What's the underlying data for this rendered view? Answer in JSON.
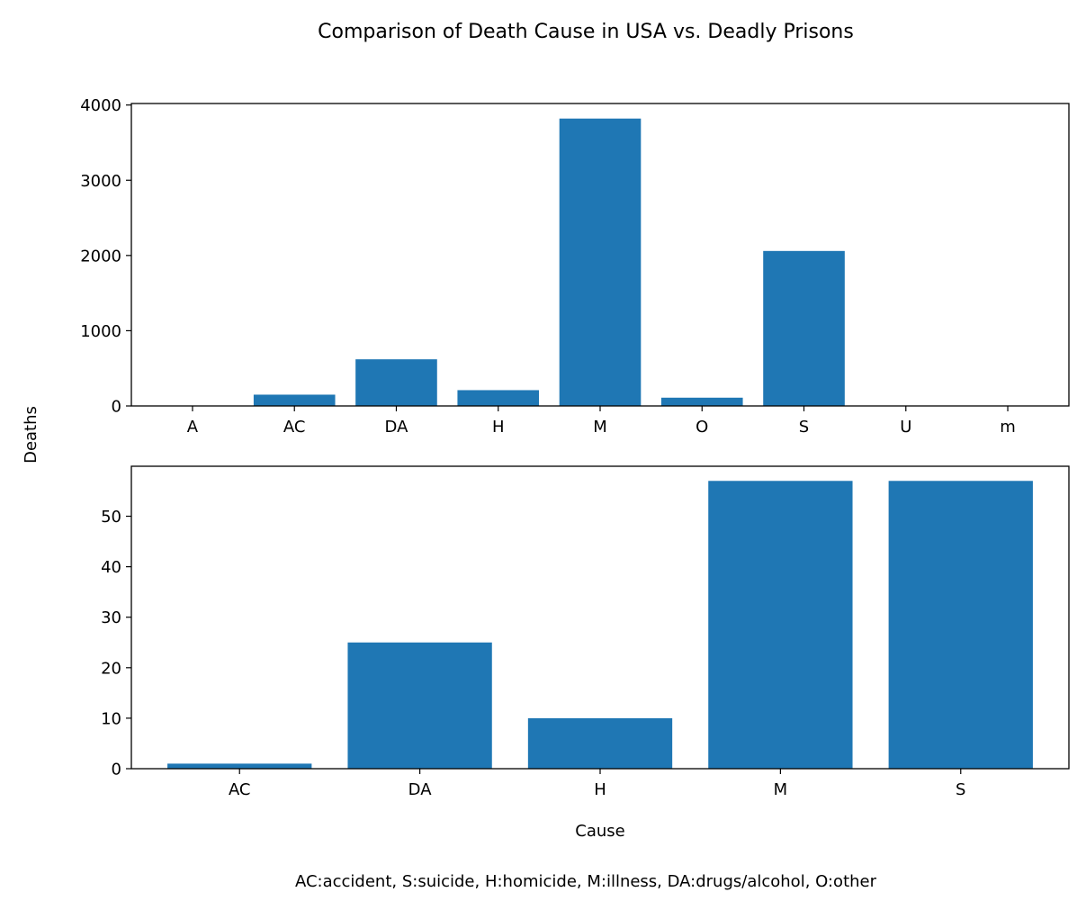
{
  "figure": {
    "title": "Comparison of Death Cause in USA vs. Deadly Prisons",
    "ylabel": "Deaths",
    "caption": "AC:accident, S:suicide, H:homicide, M:illness, DA:drugs/alcohol, O:other",
    "bar_color": "#1f77b4"
  },
  "chart_data": [
    {
      "type": "bar",
      "title": "",
      "xlabel": "",
      "ylabel": "Deaths",
      "categories": [
        "A",
        "AC",
        "DA",
        "H",
        "M",
        "O",
        "S",
        "U",
        "m"
      ],
      "values": [
        2,
        150,
        620,
        210,
        3820,
        110,
        2060,
        2,
        2
      ],
      "yticks": [
        0,
        1000,
        2000,
        3000,
        4000
      ],
      "ylim": [
        0,
        4020
      ]
    },
    {
      "type": "bar",
      "title": "",
      "xlabel": "Cause",
      "ylabel": "Deaths",
      "categories": [
        "AC",
        "DA",
        "H",
        "M",
        "S"
      ],
      "values": [
        1,
        25,
        10,
        57,
        57
      ],
      "yticks": [
        0,
        10,
        20,
        30,
        40,
        50
      ],
      "ylim": [
        0,
        59.9
      ]
    }
  ]
}
